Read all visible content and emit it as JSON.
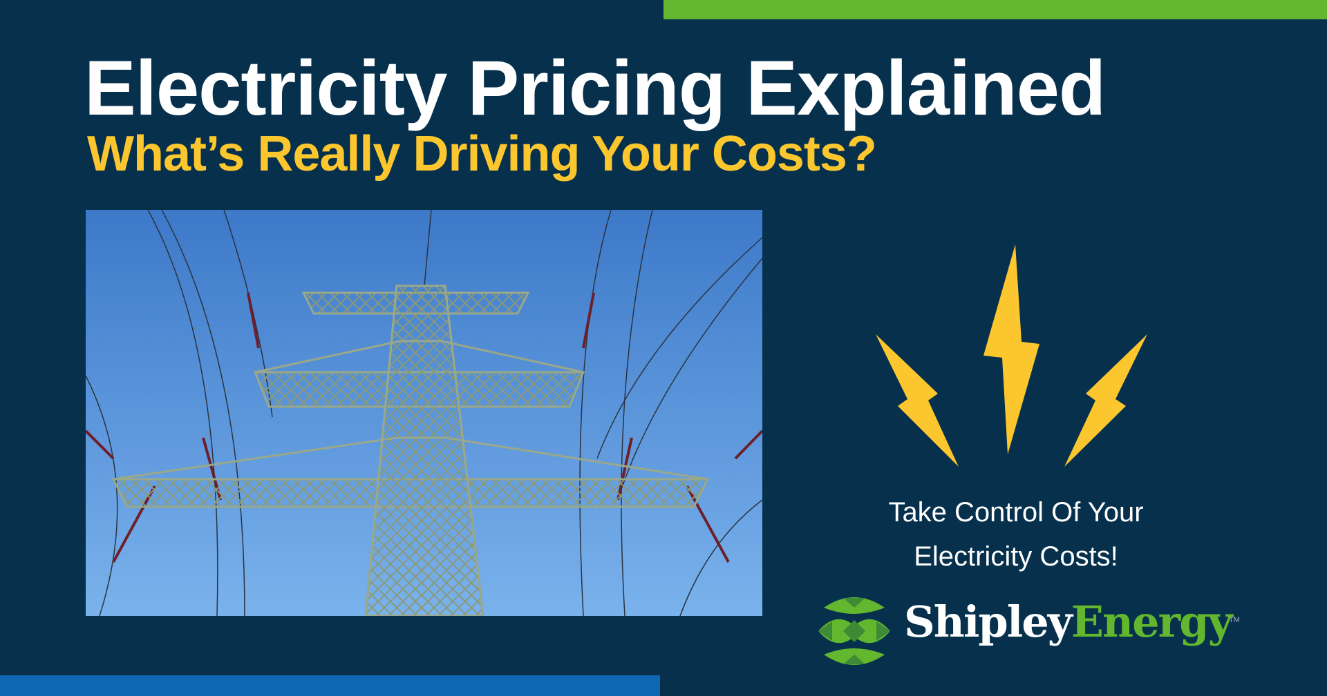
{
  "header": {
    "title": "Electricity Pricing Explained",
    "subtitle": "What’s Really Driving Your Costs?"
  },
  "photo": {
    "subject": "power-transmission-tower"
  },
  "cta": {
    "line1": "Take Control Of Your",
    "line2": "Electricity Costs!"
  },
  "logo": {
    "word1": "Shipley",
    "word2": "Energy",
    "trademark": "TM"
  },
  "colors": {
    "background": "#06304c",
    "accent_yellow": "#fcc72e",
    "brand_green": "#63b72f",
    "brand_blue": "#0f67b1"
  }
}
